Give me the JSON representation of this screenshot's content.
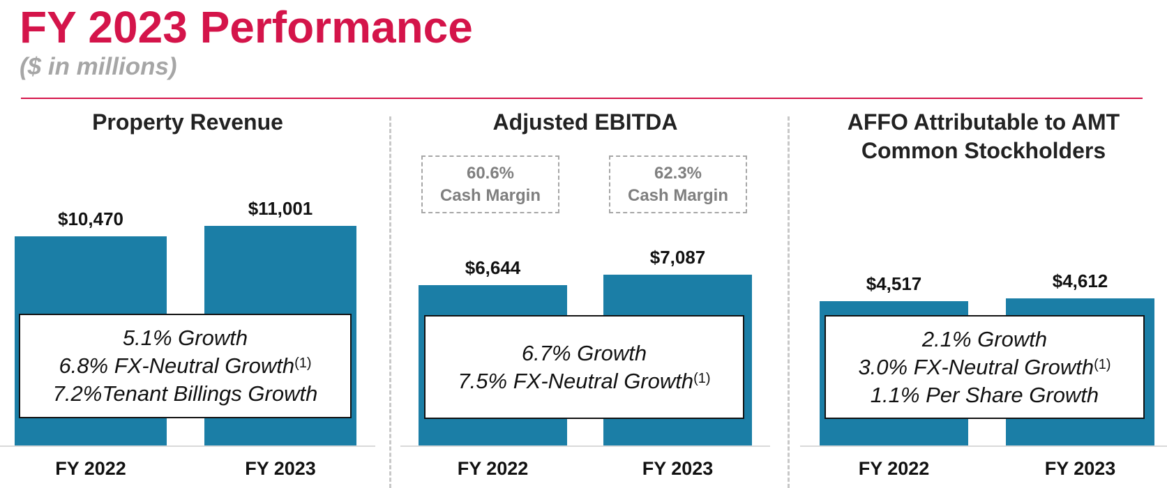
{
  "header": {
    "title": "FY 2023 Performance",
    "subtitle": "($ in millions)"
  },
  "colors": {
    "title": "#d4144a",
    "bar": "#1b7ea6",
    "subtitle": "#a6a6a6"
  },
  "panels": [
    {
      "title_lines": [
        "Property Revenue",
        ""
      ],
      "cash_margins": [],
      "growth_lines": [
        {
          "text": "5.1% Growth",
          "sup": ""
        },
        {
          "text": "6.8% FX-Neutral Growth",
          "sup": "(1)"
        },
        {
          "text": "7.2%Tenant Billings Growth",
          "sup": ""
        }
      ]
    },
    {
      "title_lines": [
        "Adjusted EBITDA",
        ""
      ],
      "cash_margins": [
        {
          "pct": "60.6%",
          "label": "Cash Margin"
        },
        {
          "pct": "62.3%",
          "label": "Cash Margin"
        }
      ],
      "growth_lines": [
        {
          "text": "6.7% Growth",
          "sup": ""
        },
        {
          "text": "7.5% FX-Neutral Growth",
          "sup": "(1)"
        }
      ]
    },
    {
      "title_lines": [
        "AFFO Attributable to AMT",
        "Common Stockholders"
      ],
      "cash_margins": [],
      "growth_lines": [
        {
          "text": "2.1% Growth",
          "sup": ""
        },
        {
          "text": "3.0% FX-Neutral Growth",
          "sup": "(1)"
        },
        {
          "text": "1.1% Per Share Growth",
          "sup": ""
        }
      ]
    }
  ],
  "chart_data": [
    {
      "type": "bar",
      "title": "Property Revenue",
      "categories": [
        "FY 2022",
        "FY 2023"
      ],
      "values": [
        10470,
        11001
      ],
      "data_labels": [
        "$10,470",
        "$11,001"
      ]
    },
    {
      "type": "bar",
      "title": "Adjusted EBITDA",
      "categories": [
        "FY 2022",
        "FY 2023"
      ],
      "values": [
        6644,
        7087
      ],
      "data_labels": [
        "$6,644",
        "$7,087"
      ]
    },
    {
      "type": "bar",
      "title": "AFFO Attributable to AMT Common Stockholders",
      "categories": [
        "FY 2022",
        "FY 2023"
      ],
      "values": [
        4517,
        4612
      ],
      "data_labels": [
        "$4,517",
        "$4,612"
      ]
    }
  ]
}
